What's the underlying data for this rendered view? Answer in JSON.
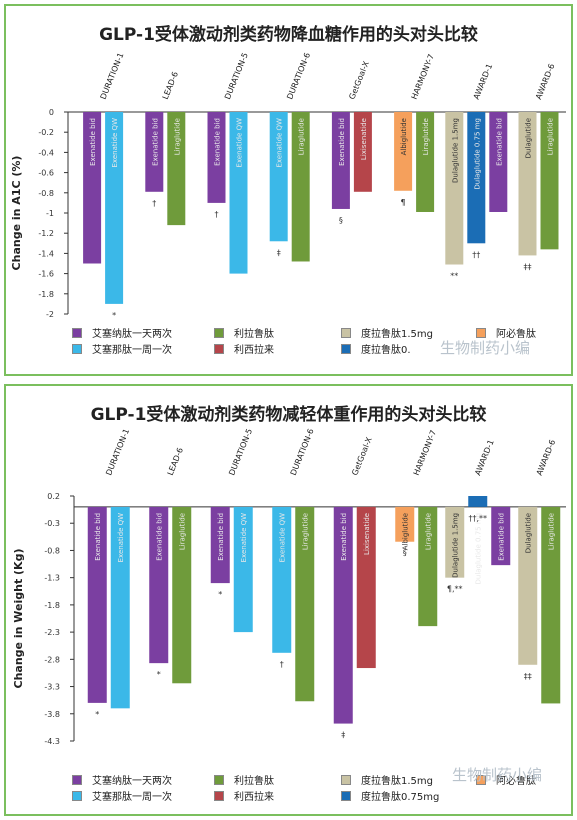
{
  "colors": {
    "exenatide_bid": "#7b3fa1",
    "exenatide_qw": "#3bb8e8",
    "liraglutide": "#6f9b3b",
    "lixisenatide": "#b5454a",
    "albiglutide": "#f5a05c",
    "dulaglutide_15": "#c9c3a4",
    "dulaglutide_075": "#1b6db5",
    "axis": "#333333",
    "frame": "#7bbf5e"
  },
  "panel1": {
    "title": "GLP-1受体激动剂类药物降血糖作用的头对头比较",
    "legend": [
      {
        "label": "艾塞纳肽一天两次",
        "color": "#7b3fa1"
      },
      {
        "label": "艾塞那肽一周一次",
        "color": "#3bb8e8"
      },
      {
        "label": "利拉鲁肽",
        "color": "#6f9b3b"
      },
      {
        "label": "利西拉来",
        "color": "#b5454a"
      },
      {
        "label": "度拉鲁肽1.5mg",
        "color": "#c9c3a4"
      },
      {
        "label": "度拉鲁肽0.",
        "color": "#1b6db5"
      },
      {
        "label": "阿必鲁肽",
        "color": "#f5a05c"
      }
    ],
    "watermark": "生物制药小编"
  },
  "panel2": {
    "title": "GLP-1受体激动剂类药物减轻体重作用的头对头比较",
    "legend": [
      {
        "label": "艾塞纳肽一天两次",
        "color": "#7b3fa1"
      },
      {
        "label": "艾塞那肽一周一次",
        "color": "#3bb8e8"
      },
      {
        "label": "利拉鲁肽",
        "color": "#6f9b3b"
      },
      {
        "label": "利西拉来",
        "color": "#b5454a"
      },
      {
        "label": "度拉鲁肽1.5mg",
        "color": "#c9c3a4"
      },
      {
        "label": "度拉鲁肽0.75mg",
        "color": "#1b6db5"
      },
      {
        "label": "阿必鲁肽",
        "color": "#f5a05c"
      }
    ],
    "watermark": "生物制药小编"
  },
  "chart_data": [
    {
      "type": "bar",
      "ylabel": "Change in A1C  (%)",
      "ylim": [
        -2,
        0
      ],
      "yticks": [
        0,
        -0.2,
        -0.4,
        -0.6,
        -0.8,
        -1,
        -1.2,
        -1.4,
        -1.6,
        -1.8,
        -2
      ],
      "ytick_labels": [
        "0",
        "-0.2",
        "-0.4",
        "-0.6",
        "-0.8",
        "-1",
        "-1.2",
        "-1.4",
        "-1.6",
        "-1.8",
        "-2"
      ],
      "grid": false,
      "trials": [
        {
          "name": "DURATION-1",
          "bars": [
            {
              "label": "Exenatide bid",
              "value": -1.5,
              "color": "#7b3fa1"
            },
            {
              "label": "Exenatide QW",
              "value": -1.9,
              "color": "#3bb8e8",
              "mark": "*"
            }
          ]
        },
        {
          "name": "LEAD-6",
          "bars": [
            {
              "label": "Exenatide bid",
              "value": -0.79,
              "color": "#7b3fa1",
              "mark": "†"
            },
            {
              "label": "Liraglutide",
              "value": -1.12,
              "color": "#6f9b3b"
            }
          ]
        },
        {
          "name": "DURATION-5",
          "bars": [
            {
              "label": "Exenatide bid",
              "value": -0.9,
              "color": "#7b3fa1",
              "mark": "†"
            },
            {
              "label": "Exenatide QW",
              "value": -1.6,
              "color": "#3bb8e8"
            }
          ]
        },
        {
          "name": "DURATION-6",
          "bars": [
            {
              "label": "Exenatide QW",
              "value": -1.28,
              "color": "#3bb8e8",
              "mark": "‡"
            },
            {
              "label": "Liraglutide",
              "value": -1.48,
              "color": "#6f9b3b"
            }
          ]
        },
        {
          "name": "GetGoal-X",
          "bars": [
            {
              "label": "Exenatide bid",
              "value": -0.96,
              "color": "#7b3fa1",
              "mark": "§"
            },
            {
              "label": "Lixisenatide",
              "value": -0.79,
              "color": "#b5454a"
            }
          ]
        },
        {
          "name": "HARMONY-7",
          "bars": [
            {
              "label": "Albiglutide",
              "value": -0.78,
              "color": "#f5a05c",
              "mark": "¶"
            },
            {
              "label": "Liraglutide",
              "value": -0.99,
              "color": "#6f9b3b"
            }
          ]
        },
        {
          "name": "AWARD-1",
          "bars": [
            {
              "label": "Dulaglutide 1.5mg",
              "value": -1.51,
              "color": "#c9c3a4",
              "mark": "**"
            },
            {
              "label": "Dulaglutide 0.75 mg",
              "value": -1.3,
              "color": "#1b6db5",
              "mark": "††"
            },
            {
              "label": "Exenatide bid",
              "value": -0.99,
              "color": "#7b3fa1"
            }
          ]
        },
        {
          "name": "AWARD-6",
          "bars": [
            {
              "label": "Dulaglutide",
              "value": -1.42,
              "color": "#c9c3a4",
              "mark": "‡‡"
            },
            {
              "label": "Liraglutide",
              "value": -1.36,
              "color": "#6f9b3b"
            }
          ]
        }
      ]
    },
    {
      "type": "bar",
      "ylabel": "Change in Weight (Kg)",
      "ylim": [
        -4.3,
        0.2
      ],
      "yticks": [
        0.2,
        -0.3,
        -0.8,
        -1.3,
        -1.8,
        -2.3,
        -2.8,
        -3.3,
        -3.8,
        -4.3
      ],
      "ytick_labels": [
        "0.2",
        "-0.3",
        "-0.8",
        "-1.3",
        "-1.8",
        "-2.3",
        "-2.8",
        "-3.3",
        "-3.8",
        "-4.3"
      ],
      "grid": false,
      "trials": [
        {
          "name": "DURATION-1",
          "bars": [
            {
              "label": "Exenatide bid",
              "value": -3.6,
              "color": "#7b3fa1",
              "mark": "*"
            },
            {
              "label": "Exenatide QW",
              "value": -3.7,
              "color": "#3bb8e8"
            }
          ]
        },
        {
          "name": "LEAD-6",
          "bars": [
            {
              "label": "Exenatide bid",
              "value": -2.87,
              "color": "#7b3fa1",
              "mark": "*"
            },
            {
              "label": "Liraglutide",
              "value": -3.24,
              "color": "#6f9b3b"
            }
          ]
        },
        {
          "name": "DURATION-5",
          "bars": [
            {
              "label": "Exenatide bid",
              "value": -1.4,
              "color": "#7b3fa1",
              "mark": "*"
            },
            {
              "label": "Exenatide QW",
              "value": -2.3,
              "color": "#3bb8e8"
            }
          ]
        },
        {
          "name": "DURATION-6",
          "bars": [
            {
              "label": "Exenatide QW",
              "value": -2.68,
              "color": "#3bb8e8",
              "mark": "†"
            },
            {
              "label": "Liraglutide",
              "value": -3.57,
              "color": "#6f9b3b"
            }
          ]
        },
        {
          "name": "GetGoal-X",
          "bars": [
            {
              "label": "Exenatide bid",
              "value": -3.98,
              "color": "#7b3fa1",
              "mark": "‡"
            },
            {
              "label": "Lixisenatide",
              "value": -2.96,
              "color": "#b5454a"
            }
          ]
        },
        {
          "name": "HARMONY-7",
          "bars": [
            {
              "label": "Albiglutide",
              "value": -0.64,
              "color": "#f5a05c",
              "mark": "§"
            },
            {
              "label": "Liraglutide",
              "value": -2.19,
              "color": "#6f9b3b"
            }
          ]
        },
        {
          "name": "AWARD-1",
          "bars": [
            {
              "label": "Dulaglutide 1.5mg",
              "value": -1.3,
              "color": "#c9c3a4",
              "mark": "¶,**"
            },
            {
              "label": "Dulaglutide 0.75 mg",
              "value": 0.2,
              "color": "#1b6db5",
              "mark": "††,**"
            },
            {
              "label": "Exenatide bid",
              "value": -1.07,
              "color": "#7b3fa1"
            }
          ]
        },
        {
          "name": "AWARD-6",
          "bars": [
            {
              "label": "Dulaglutide",
              "value": -2.9,
              "color": "#c9c3a4",
              "mark": "‡‡"
            },
            {
              "label": "Liraglutide",
              "value": -3.61,
              "color": "#6f9b3b"
            }
          ]
        }
      ]
    }
  ]
}
